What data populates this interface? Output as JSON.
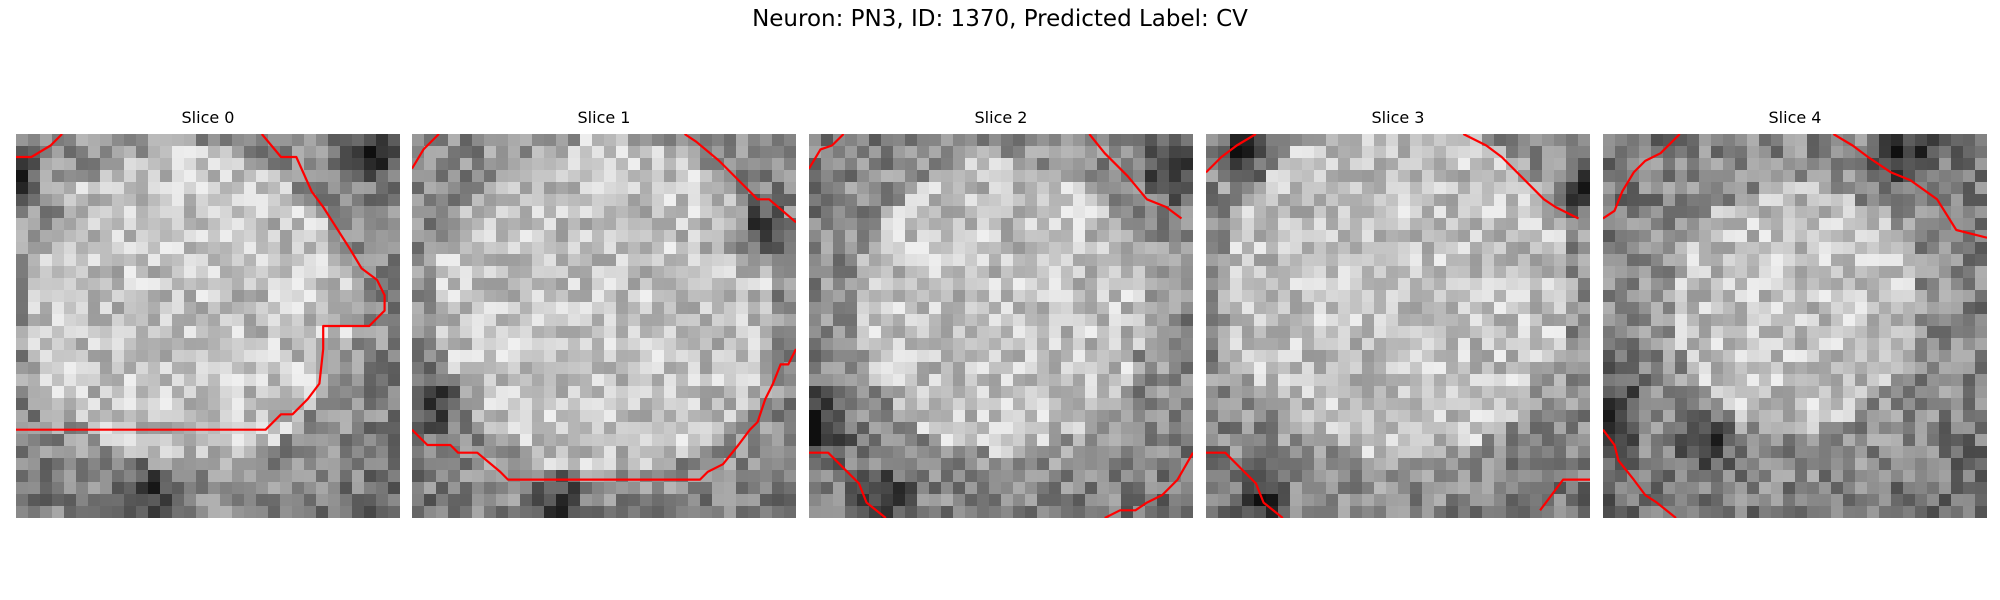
{
  "figure": {
    "title": "Neuron: PN3, ID: 1370, Predicted Label: CV"
  },
  "colors": {
    "contour": "#ff0000",
    "background": "#ffffff",
    "colormap": "grayscale"
  },
  "slices": [
    {
      "label": "Slice 0",
      "contours": [
        [
          [
            0.0,
            0.06
          ],
          [
            0.04,
            0.06
          ],
          [
            0.09,
            0.03
          ],
          [
            0.12,
            0.0
          ]
        ],
        [
          [
            0.64,
            0.0
          ],
          [
            0.69,
            0.06
          ],
          [
            0.73,
            0.06
          ],
          [
            0.77,
            0.15
          ],
          [
            0.8,
            0.19
          ],
          [
            0.87,
            0.3
          ],
          [
            0.9,
            0.35
          ],
          [
            0.94,
            0.38
          ],
          [
            0.96,
            0.42
          ],
          [
            0.96,
            0.46
          ],
          [
            0.92,
            0.5
          ],
          [
            0.88,
            0.5
          ],
          [
            0.8,
            0.5
          ],
          [
            0.8,
            0.56
          ],
          [
            0.79,
            0.65
          ],
          [
            0.76,
            0.69
          ],
          [
            0.72,
            0.73
          ],
          [
            0.69,
            0.73
          ],
          [
            0.65,
            0.77
          ],
          [
            0.0,
            0.77
          ]
        ]
      ]
    },
    {
      "label": "Slice 1",
      "contours": [
        [
          [
            0.0,
            0.09
          ],
          [
            0.03,
            0.04
          ],
          [
            0.07,
            0.0
          ]
        ],
        [
          [
            0.71,
            0.0
          ],
          [
            0.74,
            0.02
          ],
          [
            0.8,
            0.07
          ],
          [
            0.86,
            0.13
          ],
          [
            0.9,
            0.17
          ],
          [
            0.93,
            0.17
          ],
          [
            1.0,
            0.23
          ]
        ],
        [
          [
            0.0,
            0.77
          ],
          [
            0.04,
            0.81
          ],
          [
            0.1,
            0.81
          ],
          [
            0.12,
            0.83
          ],
          [
            0.17,
            0.83
          ],
          [
            0.23,
            0.88
          ],
          [
            0.25,
            0.9
          ],
          [
            0.75,
            0.9
          ],
          [
            0.77,
            0.88
          ],
          [
            0.81,
            0.86
          ],
          [
            0.85,
            0.81
          ],
          [
            0.88,
            0.77
          ],
          [
            0.9,
            0.75
          ],
          [
            0.92,
            0.69
          ],
          [
            0.94,
            0.65
          ],
          [
            0.96,
            0.6
          ],
          [
            0.98,
            0.6
          ],
          [
            1.0,
            0.56
          ]
        ]
      ]
    },
    {
      "label": "Slice 2",
      "contours": [
        [
          [
            0.0,
            0.09
          ],
          [
            0.03,
            0.04
          ],
          [
            0.06,
            0.03
          ],
          [
            0.09,
            0.0
          ]
        ],
        [
          [
            0.73,
            0.0
          ],
          [
            0.77,
            0.05
          ],
          [
            0.83,
            0.11
          ],
          [
            0.88,
            0.17
          ],
          [
            0.93,
            0.19
          ],
          [
            0.97,
            0.22
          ]
        ],
        [
          [
            0.0,
            0.83
          ],
          [
            0.05,
            0.83
          ],
          [
            0.09,
            0.87
          ],
          [
            0.13,
            0.91
          ],
          [
            0.15,
            0.96
          ],
          [
            0.2,
            1.0
          ]
        ],
        [
          [
            0.77,
            1.0
          ],
          [
            0.81,
            0.98
          ],
          [
            0.85,
            0.98
          ],
          [
            0.88,
            0.96
          ],
          [
            0.92,
            0.94
          ],
          [
            0.96,
            0.9
          ],
          [
            1.0,
            0.83
          ]
        ]
      ]
    },
    {
      "label": "Slice 3",
      "contours": [
        [
          [
            0.0,
            0.1
          ],
          [
            0.04,
            0.06
          ],
          [
            0.08,
            0.03
          ],
          [
            0.13,
            0.0
          ]
        ],
        [
          [
            0.67,
            0.0
          ],
          [
            0.73,
            0.03
          ],
          [
            0.77,
            0.06
          ],
          [
            0.82,
            0.11
          ],
          [
            0.88,
            0.17
          ],
          [
            0.91,
            0.19
          ],
          [
            0.97,
            0.22
          ]
        ],
        [
          [
            0.0,
            0.83
          ],
          [
            0.05,
            0.83
          ],
          [
            0.09,
            0.87
          ],
          [
            0.13,
            0.91
          ],
          [
            0.15,
            0.96
          ],
          [
            0.2,
            1.0
          ]
        ],
        [
          [
            0.87,
            0.98
          ],
          [
            0.9,
            0.94
          ],
          [
            0.93,
            0.9
          ],
          [
            1.0,
            0.9
          ]
        ]
      ]
    },
    {
      "label": "Slice 4",
      "contours": [
        [
          [
            0.0,
            0.22
          ],
          [
            0.03,
            0.2
          ],
          [
            0.05,
            0.15
          ],
          [
            0.08,
            0.1
          ],
          [
            0.11,
            0.07
          ],
          [
            0.15,
            0.05
          ],
          [
            0.2,
            0.0
          ]
        ],
        [
          [
            0.6,
            0.0
          ],
          [
            0.65,
            0.03
          ],
          [
            0.69,
            0.06
          ],
          [
            0.75,
            0.1
          ],
          [
            0.8,
            0.12
          ],
          [
            0.87,
            0.17
          ],
          [
            0.92,
            0.25
          ],
          [
            1.0,
            0.27
          ]
        ],
        [
          [
            0.0,
            0.77
          ],
          [
            0.03,
            0.81
          ],
          [
            0.04,
            0.85
          ],
          [
            0.08,
            0.9
          ],
          [
            0.11,
            0.94
          ],
          [
            0.14,
            0.96
          ],
          [
            0.19,
            1.0
          ]
        ]
      ]
    }
  ]
}
